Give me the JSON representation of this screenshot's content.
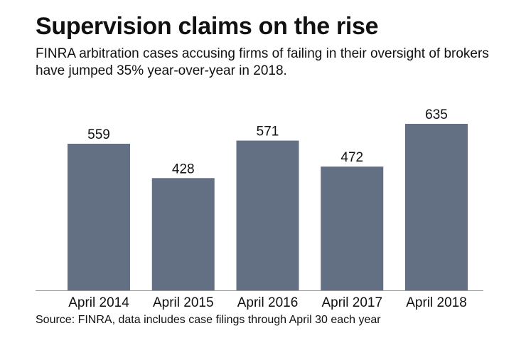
{
  "title": "Supervision claims on the rise",
  "subtitle": "FINRA arbitration cases accusing firms of failing in their oversight of brokers have jumped 35% year-over-year in 2018.",
  "source": "Source: FINRA, data includes case filings through April 30 each year",
  "chart_data": {
    "type": "bar",
    "title": "Supervision claims on the rise",
    "categories": [
      "April 2014",
      "April 2015",
      "April 2016",
      "April 2017",
      "April 2018"
    ],
    "values": [
      559,
      428,
      571,
      472,
      635
    ],
    "data_labels": [
      "559",
      "428",
      "571",
      "472",
      "635"
    ],
    "ylim": [
      0,
      635
    ],
    "grid": false,
    "bar_color": "#637083",
    "axis_color": "#999999"
  }
}
